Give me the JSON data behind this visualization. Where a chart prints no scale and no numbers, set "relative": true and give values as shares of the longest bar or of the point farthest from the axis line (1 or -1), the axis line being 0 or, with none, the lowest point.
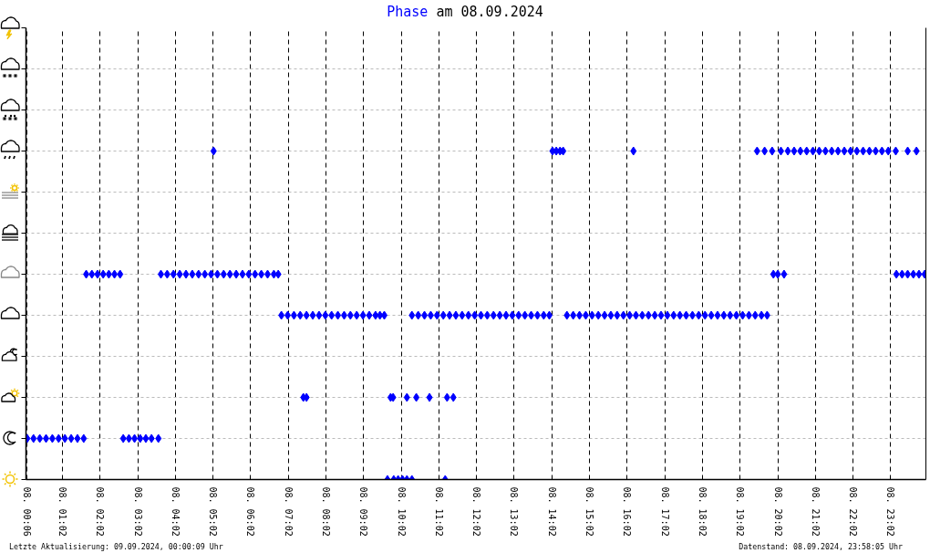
{
  "chart_data": {
    "type": "scatter",
    "title": "Phase am 08.09.2024",
    "color": "#0000ff",
    "marker": "diamond",
    "relative": true,
    "x": [
      "2024-09-08T00:06",
      "2024-09-08T00:16",
      "2024-09-08T00:26",
      "2024-09-08T00:36",
      "2024-09-08T00:46",
      "2024-09-08T00:56",
      "2024-09-08T01:06",
      "2024-09-08T01:16",
      "2024-09-08T01:26",
      "2024-09-08T01:36",
      "2024-09-08T01:40",
      "2024-09-08T01:49",
      "2024-09-08T01:58",
      "2024-09-08T02:07",
      "2024-09-08T02:16",
      "2024-09-08T02:25",
      "2024-09-08T02:34",
      "2024-09-08T02:39",
      "2024-09-08T02:48",
      "2024-09-08T02:57",
      "2024-09-08T03:06",
      "2024-09-08T03:15",
      "2024-09-08T03:24",
      "2024-09-08T03:35",
      "2024-09-08T03:39",
      "2024-09-08T03:49",
      "2024-09-08T03:59",
      "2024-09-08T04:09",
      "2024-09-08T04:19",
      "2024-09-08T04:29",
      "2024-09-08T04:39",
      "2024-09-08T04:49",
      "2024-09-08T04:59",
      "2024-09-08T05:09",
      "2024-09-08T05:19",
      "2024-09-08T05:29",
      "2024-09-08T05:39",
      "2024-09-08T05:49",
      "2024-09-08T05:59",
      "2024-09-08T06:09",
      "2024-09-08T06:19",
      "2024-09-08T06:29",
      "2024-09-08T06:39",
      "2024-09-08T06:46",
      "2024-09-08T05:03",
      "2024-09-08T06:51",
      "2024-09-08T07:01",
      "2024-09-08T07:11",
      "2024-09-08T07:21",
      "2024-09-08T07:31",
      "2024-09-08T07:41",
      "2024-09-08T07:51",
      "2024-09-08T08:01",
      "2024-09-08T08:11",
      "2024-09-08T08:21",
      "2024-09-08T08:31",
      "2024-09-08T08:41",
      "2024-09-08T08:51",
      "2024-09-08T09:01",
      "2024-09-08T09:11",
      "2024-09-08T09:21",
      "2024-09-08T09:28",
      "2024-09-08T09:35",
      "2024-09-08T07:26",
      "2024-09-08T07:31",
      "2024-09-08T09:40",
      "2024-09-08T09:50",
      "2024-09-08T09:57",
      "2024-09-08T10:04",
      "2024-09-08T10:11",
      "2024-09-08T10:19",
      "2024-09-08T11:12",
      "2024-09-08T09:45",
      "2024-09-08T09:49",
      "2024-09-08T10:11",
      "2024-09-08T10:26",
      "2024-09-08T10:47",
      "2024-09-08T11:15",
      "2024-09-08T11:25",
      "2024-09-08T10:19",
      "2024-09-08T10:29",
      "2024-09-08T10:39",
      "2024-09-08T10:49",
      "2024-09-08T10:59",
      "2024-09-08T11:09",
      "2024-09-08T11:19",
      "2024-09-08T11:29",
      "2024-09-08T11:39",
      "2024-09-08T11:49",
      "2024-09-08T11:59",
      "2024-09-08T12:09",
      "2024-09-08T12:19",
      "2024-09-08T12:29",
      "2024-09-08T12:39",
      "2024-09-08T12:49",
      "2024-09-08T12:59",
      "2024-09-08T13:09",
      "2024-09-08T13:19",
      "2024-09-08T13:29",
      "2024-09-08T13:39",
      "2024-09-08T13:49",
      "2024-09-08T13:58",
      "2024-09-08T14:03",
      "2024-09-08T14:09",
      "2024-09-08T14:15",
      "2024-09-08T14:20",
      "2024-09-08T16:12",
      "2024-09-08T14:26",
      "2024-09-08T14:36",
      "2024-09-08T14:46",
      "2024-09-08T14:56",
      "2024-09-08T15:06",
      "2024-09-08T15:16",
      "2024-09-08T15:26",
      "2024-09-08T15:36",
      "2024-09-08T15:46",
      "2024-09-08T15:56",
      "2024-09-08T16:06",
      "2024-09-08T16:16",
      "2024-09-08T16:26",
      "2024-09-08T16:36",
      "2024-09-08T16:46",
      "2024-09-08T16:56",
      "2024-09-08T17:06",
      "2024-09-08T17:16",
      "2024-09-08T17:26",
      "2024-09-08T17:36",
      "2024-09-08T17:46",
      "2024-09-08T17:56",
      "2024-09-08T18:06",
      "2024-09-08T18:16",
      "2024-09-08T18:26",
      "2024-09-08T18:36",
      "2024-09-08T18:46",
      "2024-09-08T18:56",
      "2024-09-08T19:06",
      "2024-09-08T19:16",
      "2024-09-08T19:26",
      "2024-09-08T19:36",
      "2024-09-08T19:45",
      "2024-09-08T19:29",
      "2024-09-08T19:41",
      "2024-09-08T19:53",
      "2024-09-08T20:07",
      "2024-09-08T20:18",
      "2024-09-08T20:28",
      "2024-09-08T20:38",
      "2024-09-08T20:48",
      "2024-09-08T20:58",
      "2024-09-08T21:08",
      "2024-09-08T21:18",
      "2024-09-08T21:28",
      "2024-09-08T21:38",
      "2024-09-08T21:48",
      "2024-09-08T21:58",
      "2024-09-08T22:08",
      "2024-09-08T22:18",
      "2024-09-08T22:28",
      "2024-09-08T22:38",
      "2024-09-08T22:48",
      "2024-09-08T22:58",
      "2024-09-08T23:10",
      "2024-09-08T23:29",
      "2024-09-08T23:43",
      "2024-09-08T19:55",
      "2024-09-08T20:02",
      "2024-09-08T20:12",
      "2024-09-08T23:11",
      "2024-09-08T23:20",
      "2024-09-08T23:29",
      "2024-09-08T23:38",
      "2024-09-08T23:47",
      "2024-09-08T23:56"
    ],
    "values": [
      0.125,
      0.125,
      0.125,
      0.125,
      0.125,
      0.125,
      0.125,
      0.125,
      0.125,
      0.125,
      0.625,
      0.625,
      0.625,
      0.625,
      0.625,
      0.625,
      0.625,
      0.125,
      0.125,
      0.125,
      0.125,
      0.125,
      0.125,
      0.125,
      0.625,
      0.625,
      0.625,
      0.625,
      0.625,
      0.625,
      0.625,
      0.625,
      0.625,
      0.625,
      0.625,
      0.625,
      0.625,
      0.625,
      0.625,
      0.625,
      0.625,
      0.625,
      0.625,
      0.625,
      1,
      0.5,
      0.5,
      0.5,
      0.5,
      0.5,
      0.5,
      0.5,
      0.5,
      0.5,
      0.5,
      0.5,
      0.5,
      0.5,
      0.5,
      0.5,
      0.5,
      0.5,
      0.5,
      0.25,
      0.25,
      0,
      0,
      0,
      0,
      0,
      0,
      0,
      0.25,
      0.25,
      0.25,
      0.25,
      0.25,
      0.25,
      0.25,
      0.5,
      0.5,
      0.5,
      0.5,
      0.5,
      0.5,
      0.5,
      0.5,
      0.5,
      0.5,
      0.5,
      0.5,
      0.5,
      0.5,
      0.5,
      0.5,
      0.5,
      0.5,
      0.5,
      0.5,
      0.5,
      0.5,
      0.5,
      1,
      1,
      1,
      1,
      1,
      0.5,
      0.5,
      0.5,
      0.5,
      0.5,
      0.5,
      0.5,
      0.5,
      0.5,
      0.5,
      0.5,
      0.5,
      0.5,
      0.5,
      0.5,
      0.5,
      0.5,
      0.5,
      0.5,
      0.5,
      0.5,
      0.5,
      0.5,
      0.5,
      0.5,
      0.5,
      0.5,
      0.5,
      0.5,
      0.5,
      0.5,
      0.5,
      0.5,
      1,
      1,
      1,
      1,
      1,
      1,
      1,
      1,
      1,
      1,
      1,
      1,
      1,
      1,
      1,
      1,
      1,
      1,
      1,
      1,
      1,
      1,
      1,
      1,
      0.625,
      0.625,
      0.625,
      0.625,
      0.625,
      0.625,
      0.625,
      0.625,
      0.625
    ],
    "xlim": [
      "2024-09-08T00:04",
      "2024-09-08T23:58"
    ],
    "xticks": [
      {
        "value": "2024-09-08T00:06",
        "label": "08. 00:06"
      },
      {
        "value": "2024-09-08T01:02",
        "label": "08. 01:02"
      },
      {
        "value": "2024-09-08T02:02",
        "label": "08. 02:02"
      },
      {
        "value": "2024-09-08T03:02",
        "label": "08. 03:02"
      },
      {
        "value": "2024-09-08T04:02",
        "label": "08. 04:02"
      },
      {
        "value": "2024-09-08T05:02",
        "label": "08. 05:02"
      },
      {
        "value": "2024-09-08T06:02",
        "label": "08. 06:02"
      },
      {
        "value": "2024-09-08T07:02",
        "label": "08. 07:02"
      },
      {
        "value": "2024-09-08T08:02",
        "label": "08. 08:02"
      },
      {
        "value": "2024-09-08T09:02",
        "label": "08. 09:02"
      },
      {
        "value": "2024-09-08T10:02",
        "label": "08. 10:02"
      },
      {
        "value": "2024-09-08T11:02",
        "label": "08. 11:02"
      },
      {
        "value": "2024-09-08T12:02",
        "label": "08. 12:02"
      },
      {
        "value": "2024-09-08T13:02",
        "label": "08. 13:02"
      },
      {
        "value": "2024-09-08T14:02",
        "label": "08. 14:02"
      },
      {
        "value": "2024-09-08T15:02",
        "label": "08. 15:02"
      },
      {
        "value": "2024-09-08T16:02",
        "label": "08. 16:02"
      },
      {
        "value": "2024-09-08T17:02",
        "label": "08. 17:02"
      },
      {
        "value": "2024-09-08T18:02",
        "label": "08. 18:02"
      },
      {
        "value": "2024-09-08T19:02",
        "label": "08. 19:02"
      },
      {
        "value": "2024-09-08T20:02",
        "label": "08. 20:02"
      },
      {
        "value": "2024-09-08T21:02",
        "label": "08. 21:02"
      },
      {
        "value": "2024-09-08T22:02",
        "label": "08. 22:02"
      },
      {
        "value": "2024-09-08T23:02",
        "label": "08. 23:02"
      }
    ],
    "grid": true,
    "annotations": [
      "Letzte Aktualisierung: 09.09.2024, 00:00:09 Uhr",
      "Datenstand: 08.09.2024, 23:58:05 Uhr"
    ]
  }
}
